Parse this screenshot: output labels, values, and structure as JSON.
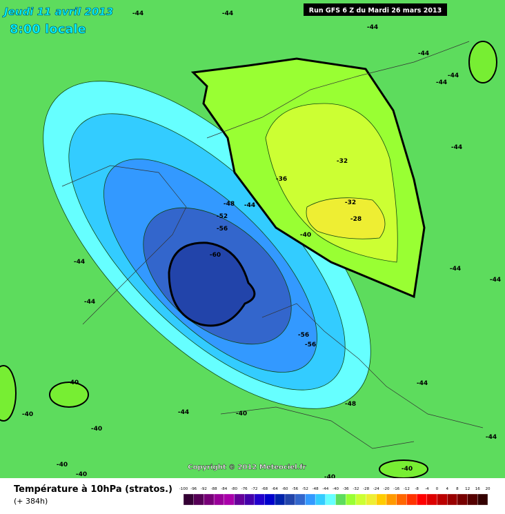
{
  "header": {
    "date": "Jeudi 11 avril 2013",
    "time": "8:00 locale",
    "run": "Run GFS 6 Z du Mardi 26 mars 2013"
  },
  "copyright": "Copyright © 2012 Meteociel.fr",
  "footer": {
    "title": "Température à 10hPa (stratos.)",
    "lead": "(+ 384h)"
  },
  "contour_labels": [
    -44,
    -44,
    -44,
    -44,
    -44,
    -44,
    -44,
    -44,
    -44,
    -44,
    -44,
    -44,
    -48,
    -52,
    -56,
    -60,
    -56,
    -56,
    -48,
    -44,
    -40,
    -40,
    -40,
    -40,
    -40,
    -40,
    -40,
    -36,
    -32,
    -32,
    -28,
    -40,
    -44,
    -44,
    -40
  ],
  "color_scale": {
    "labels": [
      -100,
      -96,
      -92,
      -88,
      -84,
      -80,
      -76,
      -72,
      -68,
      -64,
      -60,
      -56,
      -52,
      -48,
      -44,
      -40,
      -36,
      -32,
      -28,
      -24,
      -20,
      -16,
      -12,
      -8,
      -4,
      0,
      4,
      8,
      12,
      16,
      20
    ],
    "colors": [
      "#330033",
      "#550055",
      "#770077",
      "#990099",
      "#aa00aa",
      "#660099",
      "#4400aa",
      "#2200cc",
      "#0000cc",
      "#0022aa",
      "#2244aa",
      "#3366cc",
      "#3399ff",
      "#33ccff",
      "#66ffff",
      "#5ddc5d",
      "#99ff33",
      "#ccff33",
      "#eeee33",
      "#ffcc00",
      "#ff9900",
      "#ff6600",
      "#ff3300",
      "#ff0000",
      "#dd0000",
      "#bb0000",
      "#990000",
      "#770000",
      "#550000",
      "#330000"
    ]
  }
}
